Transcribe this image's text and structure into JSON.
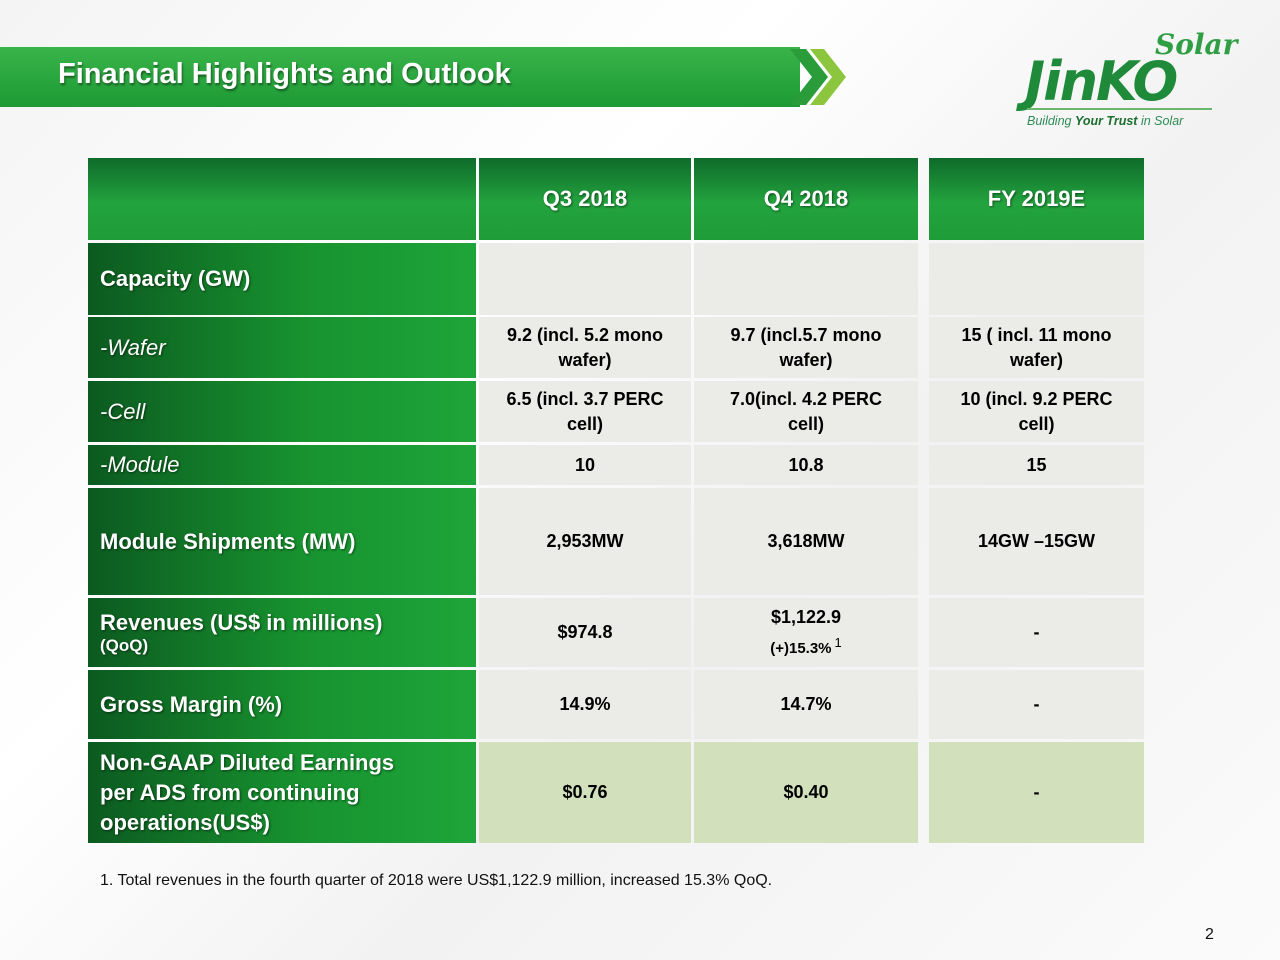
{
  "title": "Financial Highlights and Outlook",
  "logo": {
    "word_solar": "Solar",
    "word_jinko": "JinKO",
    "tagline_a": "Building ",
    "tagline_b": "Your Trust",
    "tagline_c": " in Solar"
  },
  "table": {
    "columns": [
      "Q3 2018",
      "Q4 2018",
      "FY 2019E"
    ],
    "rows": {
      "capacity": {
        "label": "Capacity (GW)"
      },
      "wafer": {
        "label": "-Wafer",
        "values": [
          [
            "9.2 (incl. 5.2 mono",
            "wafer)"
          ],
          [
            "9.7 (incl.5.7 mono",
            "wafer)"
          ],
          [
            "15 ( incl. 11 mono",
            "wafer)"
          ]
        ]
      },
      "cell": {
        "label": "-Cell",
        "values": [
          [
            "6.5 (incl. 3.7 PERC",
            "cell)"
          ],
          [
            "7.0(incl. 4.2 PERC",
            "cell)"
          ],
          [
            "10 (incl. 9.2 PERC",
            "cell)"
          ]
        ]
      },
      "module": {
        "label": "-Module",
        "values": [
          "10",
          "10.8",
          "15"
        ]
      },
      "shipments": {
        "label": "Module Shipments (MW)",
        "values": [
          "2,953MW",
          "3,618MW",
          "14GW –15GW"
        ]
      },
      "revenues": {
        "label": "Revenues (US$ in millions)",
        "sublabel": "(QoQ)",
        "values": [
          "$974.8",
          "$1,122.9",
          "-"
        ],
        "q4_qoq": "(+)15.3%",
        "q4_footnote_mark": "1"
      },
      "gross_margin": {
        "label": "Gross Margin (%)",
        "values": [
          "14.9%",
          "14.7%",
          "-"
        ]
      },
      "eps": {
        "label_lines": [
          "Non-GAAP Diluted Earnings",
          "per ADS from continuing",
          "operations(US$)"
        ],
        "values": [
          "$0.76",
          "$0.40",
          "-"
        ]
      }
    }
  },
  "footnote": "1. Total revenues in the fourth quarter of 2018 were US$1,122.9 million, increased 15.3% QoQ.",
  "page_number": "2",
  "colors": {
    "brand_green": "#1e9a35",
    "dark_green": "#0c5a20",
    "cell_gray": "#ebebe8",
    "cell_light_green": "#d2e1bc"
  }
}
